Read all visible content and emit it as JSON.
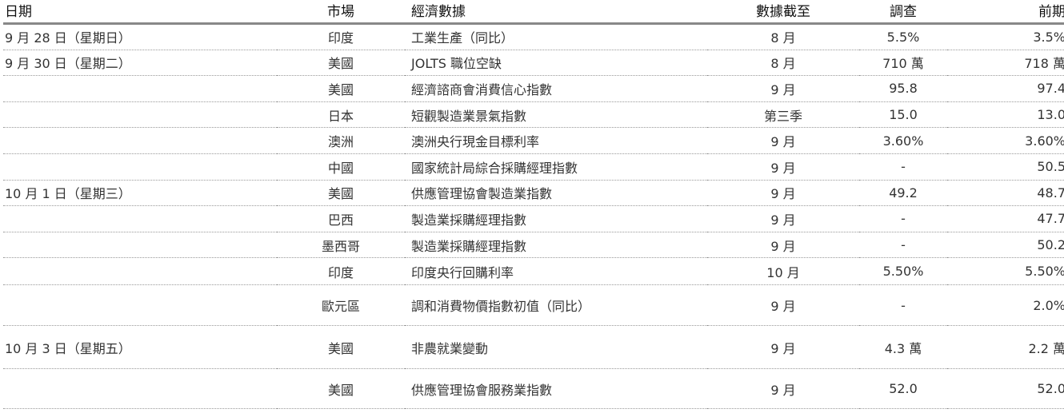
{
  "headers": {
    "date": "日期",
    "market": "市場",
    "indicator": "經濟數據",
    "as_of": "數據截至",
    "survey": "調查",
    "previous": "前期"
  },
  "rows": [
    {
      "date": "9 月 28 日（星期日）",
      "market": "印度",
      "indicator": "工業生產（同比）",
      "as_of": "8 月",
      "survey": "5.5%",
      "previous": "3.5%"
    },
    {
      "date": "9 月 30 日（星期二）",
      "market": "美國",
      "indicator": "JOLTS 職位空缺",
      "as_of": "8 月",
      "survey": "710 萬",
      "previous": "718 萬"
    },
    {
      "date": "",
      "market": "美國",
      "indicator": "經濟諮商會消費信心指數",
      "as_of": "9 月",
      "survey": "95.8",
      "previous": "97.4"
    },
    {
      "date": "",
      "market": "日本",
      "indicator": "短觀製造業景氣指數",
      "as_of": "第三季",
      "survey": "15.0",
      "previous": "13.0"
    },
    {
      "date": "",
      "market": "澳洲",
      "indicator": "澳洲央行現金目標利率",
      "as_of": "9 月",
      "survey": "3.60%",
      "previous": "3.60%"
    },
    {
      "date": "",
      "market": "中國",
      "indicator": "國家統計局綜合採購經理指數",
      "as_of": "9 月",
      "survey": "-",
      "previous": "50.5"
    },
    {
      "date": "10 月 1 日（星期三）",
      "market": "美國",
      "indicator": "供應管理協會製造業指數",
      "as_of": "9 月",
      "survey": "49.2",
      "previous": "48.7"
    },
    {
      "date": "",
      "market": "巴西",
      "indicator": "製造業採購經理指數",
      "as_of": "9 月",
      "survey": "-",
      "previous": "47.7"
    },
    {
      "date": "",
      "market": "墨西哥",
      "indicator": "製造業採購經理指數",
      "as_of": "9 月",
      "survey": "-",
      "previous": "50.2"
    },
    {
      "date": "",
      "market": "印度",
      "indicator": "印度央行回購利率",
      "as_of": "10 月",
      "survey": "5.50%",
      "previous": "5.50%"
    },
    {
      "date": "",
      "market": "歐元區",
      "indicator": "調和消費物價指數初值（同比）",
      "as_of": "9 月",
      "survey": "-",
      "previous": "2.0%"
    },
    {
      "date": "10 月 3 日（星期五）",
      "market": "美國",
      "indicator": "非農就業變動",
      "as_of": "9 月",
      "survey": "4.3 萬",
      "previous": "2.2 萬"
    },
    {
      "date": "",
      "market": "美國",
      "indicator": "供應管理協會服務業指數",
      "as_of": "9 月",
      "survey": "52.0",
      "previous": "52.0"
    }
  ]
}
